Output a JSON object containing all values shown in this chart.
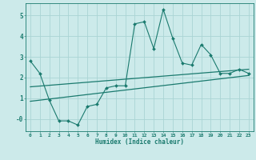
{
  "xlabel": "Humidex (Indice chaleur)",
  "xlim": [
    -0.5,
    23.5
  ],
  "ylim": [
    -0.6,
    5.6
  ],
  "bg_color": "#cceaea",
  "line_color": "#1a7a6e",
  "grid_color": "#aad4d4",
  "main_x": [
    0,
    1,
    2,
    3,
    4,
    5,
    6,
    7,
    8,
    9,
    10,
    11,
    12,
    13,
    14,
    15,
    16,
    17,
    18,
    19,
    20,
    21,
    22,
    23
  ],
  "main_y": [
    2.8,
    2.2,
    0.9,
    -0.1,
    -0.1,
    -0.3,
    0.6,
    0.7,
    1.5,
    1.6,
    1.6,
    4.6,
    4.7,
    3.4,
    5.3,
    3.9,
    2.7,
    2.6,
    3.6,
    3.1,
    2.2,
    2.2,
    2.4,
    2.2
  ],
  "trend1_x": [
    0,
    23
  ],
  "trend1_y": [
    0.85,
    2.1
  ],
  "trend2_x": [
    0,
    23
  ],
  "trend2_y": [
    1.55,
    2.4
  ],
  "yticks": [
    0,
    1,
    2,
    3,
    4,
    5
  ],
  "ytick_labels": [
    "-0",
    "1",
    "2",
    "3",
    "4",
    "5"
  ],
  "xticks": [
    0,
    1,
    2,
    3,
    4,
    5,
    6,
    7,
    8,
    9,
    10,
    11,
    12,
    13,
    14,
    15,
    16,
    17,
    18,
    19,
    20,
    21,
    22,
    23
  ]
}
